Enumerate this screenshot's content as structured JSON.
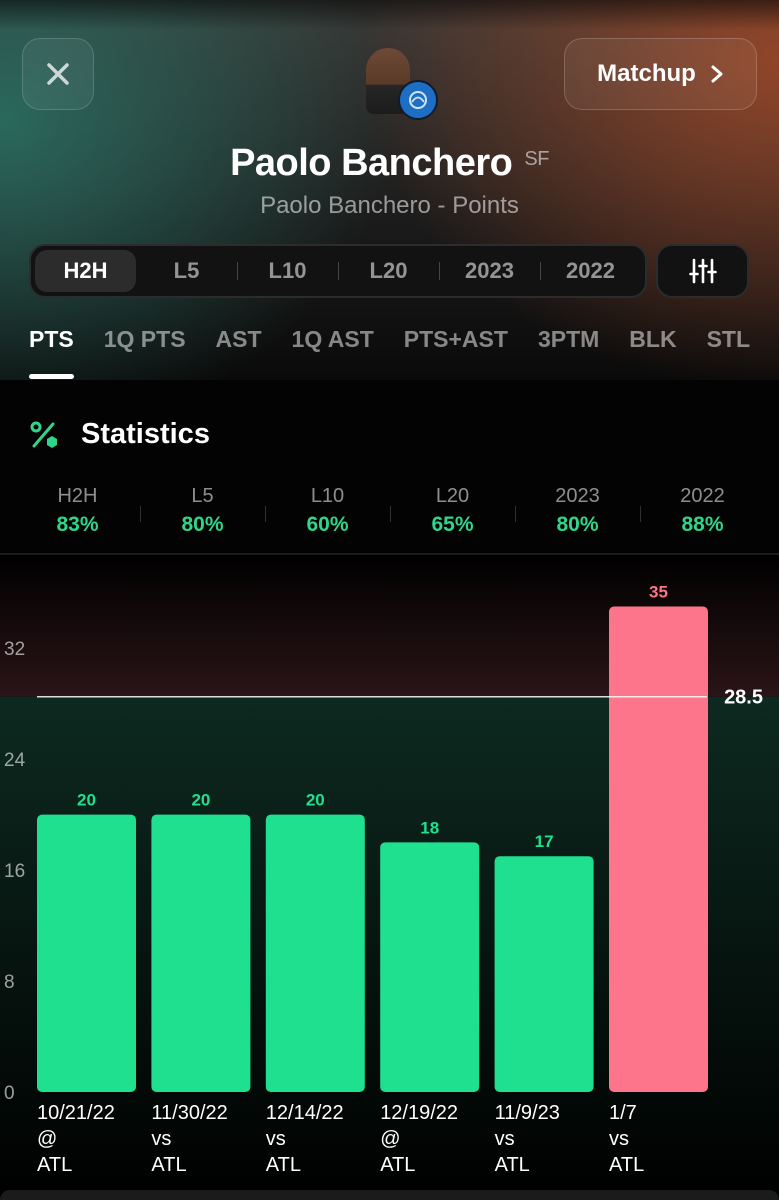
{
  "header": {
    "player_name": "Paolo Banchero",
    "position": "SF",
    "subtitle": "Paolo Banchero - Points",
    "matchup_label": "Matchup"
  },
  "period_tabs": [
    "H2H",
    "L5",
    "L10",
    "L20",
    "2023",
    "2022"
  ],
  "active_period": "H2H",
  "stat_tabs": [
    "PTS",
    "1Q PTS",
    "AST",
    "1Q AST",
    "PTS+AST",
    "3PTM",
    "BLK",
    "STL"
  ],
  "active_stat": "PTS",
  "statistics": {
    "title": "Statistics",
    "items": [
      {
        "label": "H2H",
        "value": "83%"
      },
      {
        "label": "L5",
        "value": "80%"
      },
      {
        "label": "L10",
        "value": "60%"
      },
      {
        "label": "L20",
        "value": "65%"
      },
      {
        "label": "2023",
        "value": "80%"
      },
      {
        "label": "2022",
        "value": "88%"
      }
    ]
  },
  "colors": {
    "over": "#1ee08f",
    "under": "#fd758a",
    "accent_green": "#2fd58a"
  },
  "icons": {
    "close": "close-icon",
    "matchup": "chevron-right-icon",
    "filter": "sliders-icon",
    "statistics": "percent-icon"
  },
  "chart_data": {
    "type": "bar",
    "categories": [
      "10/21/22 @ ATL",
      "11/30/22 vs ATL",
      "12/14/22 vs ATL",
      "12/19/22 @ ATL",
      "11/9/23 vs ATL",
      "1/7 vs ATL"
    ],
    "category_lines": [
      [
        "10/21/22",
        "@",
        "ATL"
      ],
      [
        "11/30/22",
        "vs",
        "ATL"
      ],
      [
        "12/14/22",
        "vs",
        "ATL"
      ],
      [
        "12/19/22",
        "@",
        "ATL"
      ],
      [
        "11/9/23",
        "vs",
        "ATL"
      ],
      [
        "1/7",
        "vs",
        "ATL"
      ]
    ],
    "values": [
      20,
      20,
      20,
      18,
      17,
      35
    ],
    "threshold": 28.5,
    "threshold_label": "28.5",
    "yticks": [
      0,
      8,
      16,
      24,
      32
    ],
    "ylim": [
      0,
      35
    ],
    "title": "",
    "xlabel": "",
    "ylabel": ""
  }
}
